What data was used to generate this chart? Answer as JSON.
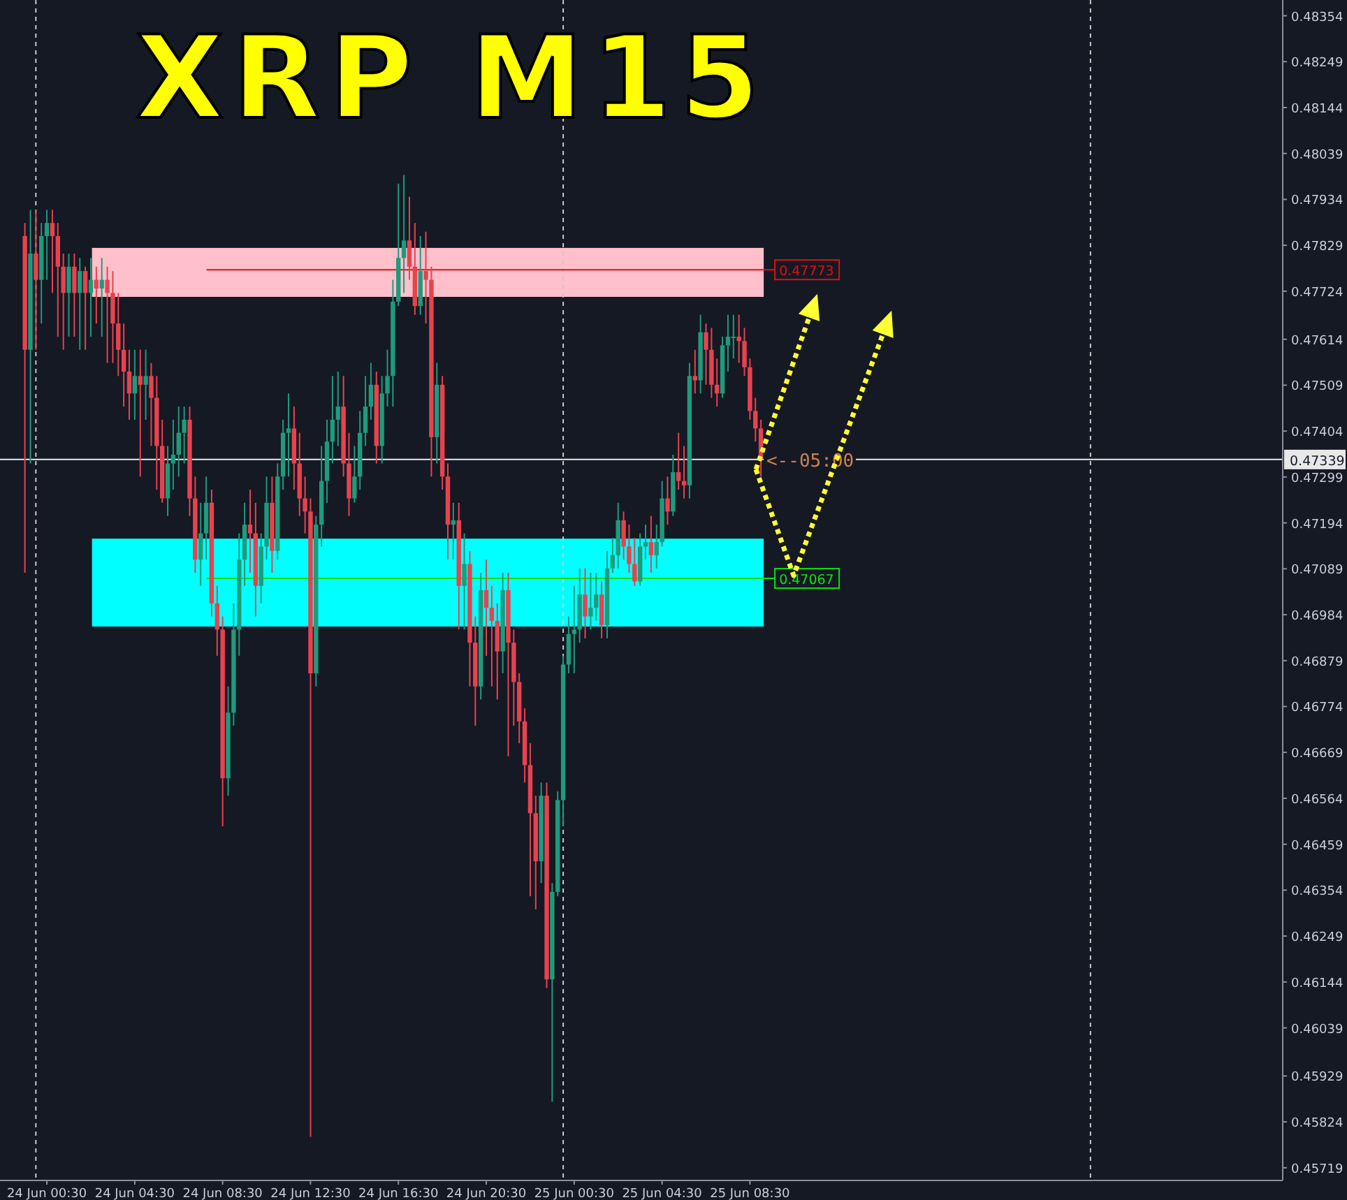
{
  "chart_data": {
    "type": "candlestick",
    "title": "XRP M15",
    "x": [
      "--06-23T23:30",
      "--06-23T23:45",
      "--06-24T00:00",
      "--06-24T00:15",
      "--06-24T00:30",
      "--06-24T00:45",
      "--06-24T01:00",
      "--06-24T01:15",
      "--06-24T01:30",
      "--06-24T01:45",
      "--06-24T02:00",
      "--06-24T02:15",
      "--06-24T02:30",
      "--06-24T02:45",
      "--06-24T03:00",
      "--06-24T03:15",
      "--06-24T03:30",
      "--06-24T03:45",
      "--06-24T04:00",
      "--06-24T04:15",
      "--06-24T04:30",
      "--06-24T04:45",
      "--06-24T05:00",
      "--06-24T05:15",
      "--06-24T05:30",
      "--06-24T05:45",
      "--06-24T06:00",
      "--06-24T06:15",
      "--06-24T06:30",
      "--06-24T06:45",
      "--06-24T07:00",
      "--06-24T07:15",
      "--06-24T07:30",
      "--06-24T07:45",
      "--06-24T08:00",
      "--06-24T08:15",
      "--06-24T08:30",
      "--06-24T08:45",
      "--06-24T09:00",
      "--06-24T09:15",
      "--06-24T09:30",
      "--06-24T09:45",
      "--06-24T10:00",
      "--06-24T10:15",
      "--06-24T10:30",
      "--06-24T10:45",
      "--06-24T11:00",
      "--06-24T11:15",
      "--06-24T11:30",
      "--06-24T11:45",
      "--06-24T12:00",
      "--06-24T12:15",
      "--06-24T12:30",
      "--06-24T12:45",
      "--06-24T13:00",
      "--06-24T13:15",
      "--06-24T13:30",
      "--06-24T13:45",
      "--06-24T14:00",
      "--06-24T14:15",
      "--06-24T14:30",
      "--06-24T14:45",
      "--06-24T15:00",
      "--06-24T15:15",
      "--06-24T15:30",
      "--06-24T15:45",
      "--06-24T16:00",
      "--06-24T16:15",
      "--06-24T16:30",
      "--06-24T16:45",
      "--06-24T17:00",
      "--06-24T17:15",
      "--06-24T17:30",
      "--06-24T17:45",
      "--06-24T18:00",
      "--06-24T18:15",
      "--06-24T18:30",
      "--06-24T18:45",
      "--06-24T19:00",
      "--06-24T19:15",
      "--06-24T19:30",
      "--06-24T19:45",
      "--06-24T20:00",
      "--06-24T20:15",
      "--06-24T20:30",
      "--06-24T20:45",
      "--06-24T21:00",
      "--06-24T21:15",
      "--06-24T21:30",
      "--06-24T21:45",
      "--06-24T22:00",
      "--06-24T22:15",
      "--06-24T22:30",
      "--06-24T22:45",
      "--06-24T23:00",
      "--06-24T23:15",
      "--06-24T23:30",
      "--06-24T23:45",
      "--06-25T00:00",
      "--06-25T00:15",
      "--06-25T00:30",
      "--06-25T00:45",
      "--06-25T01:00",
      "--06-25T01:15",
      "--06-25T01:30",
      "--06-25T01:45",
      "--06-25T02:00",
      "--06-25T02:15",
      "--06-25T02:30",
      "--06-25T02:45",
      "--06-25T03:00",
      "--06-25T03:15",
      "--06-25T03:30",
      "--06-25T03:45",
      "--06-25T04:00",
      "--06-25T04:15",
      "--06-25T04:30",
      "--06-25T04:45",
      "--06-25T05:00",
      "--06-25T05:15",
      "--06-25T05:30",
      "--06-25T05:45",
      "--06-25T06:00",
      "--06-25T06:15",
      "--06-25T06:30",
      "--06-25T06:45",
      "--06-25T07:00",
      "--06-25T07:15",
      "--06-25T07:30",
      "--06-25T07:45",
      "--06-25T08:00",
      "--06-25T08:15",
      "--06-25T08:30",
      "--06-25T08:45",
      "--06-25T09:00"
    ],
    "ohlc": [
      [
        0.4785,
        0.4788,
        0.4708,
        0.4759
      ],
      [
        0.4759,
        0.4791,
        0.4733,
        0.4781
      ],
      [
        0.4781,
        0.4791,
        0.4759,
        0.4775
      ],
      [
        0.4775,
        0.4788,
        0.4765,
        0.4785
      ],
      [
        0.4785,
        0.4791,
        0.4775,
        0.4788
      ],
      [
        0.4788,
        0.4791,
        0.4772,
        0.4785
      ],
      [
        0.4785,
        0.4788,
        0.4762,
        0.4778
      ],
      [
        0.4778,
        0.4781,
        0.4759,
        0.4772
      ],
      [
        0.4772,
        0.4781,
        0.4762,
        0.4778
      ],
      [
        0.4778,
        0.4781,
        0.4762,
        0.4772
      ],
      [
        0.4772,
        0.478,
        0.4759,
        0.4777
      ],
      [
        0.4777,
        0.4778,
        0.4759,
        0.4772
      ],
      [
        0.4772,
        0.478,
        0.4762,
        0.4775
      ],
      [
        0.4775,
        0.4778,
        0.4765,
        0.4773
      ],
      [
        0.4773,
        0.478,
        0.4762,
        0.4775
      ],
      [
        0.4775,
        0.4778,
        0.4756,
        0.4772
      ],
      [
        0.4772,
        0.4777,
        0.4756,
        0.4765
      ],
      [
        0.4765,
        0.4772,
        0.4753,
        0.4759
      ],
      [
        0.4759,
        0.4765,
        0.4746,
        0.4754
      ],
      [
        0.4754,
        0.4759,
        0.4743,
        0.4749
      ],
      [
        0.4749,
        0.4759,
        0.4743,
        0.4753
      ],
      [
        0.4753,
        0.4759,
        0.473,
        0.4751
      ],
      [
        0.4751,
        0.4759,
        0.4743,
        0.4753
      ],
      [
        0.4753,
        0.4756,
        0.4737,
        0.4748
      ],
      [
        0.4748,
        0.4753,
        0.4727,
        0.4737
      ],
      [
        0.4737,
        0.4743,
        0.4724,
        0.4725
      ],
      [
        0.4725,
        0.4737,
        0.4721,
        0.4733
      ],
      [
        0.4733,
        0.4743,
        0.4727,
        0.4735
      ],
      [
        0.4735,
        0.4746,
        0.473,
        0.474
      ],
      [
        0.474,
        0.4746,
        0.4733,
        0.4743
      ],
      [
        0.4743,
        0.4746,
        0.4721,
        0.4725
      ],
      [
        0.4725,
        0.473,
        0.4708,
        0.4711
      ],
      [
        0.4711,
        0.4724,
        0.4705,
        0.4717
      ],
      [
        0.4717,
        0.473,
        0.4711,
        0.4724
      ],
      [
        0.4724,
        0.4727,
        0.4698,
        0.4701
      ],
      [
        0.4701,
        0.4705,
        0.4689,
        0.4695
      ],
      [
        0.4695,
        0.4698,
        0.465,
        0.4661
      ],
      [
        0.4661,
        0.4682,
        0.4657,
        0.4676
      ],
      [
        0.4676,
        0.4701,
        0.4673,
        0.4695
      ],
      [
        0.4695,
        0.4717,
        0.4689,
        0.4711
      ],
      [
        0.4711,
        0.4724,
        0.4705,
        0.4719
      ],
      [
        0.4719,
        0.4727,
        0.4708,
        0.4717
      ],
      [
        0.4717,
        0.4724,
        0.4698,
        0.4705
      ],
      [
        0.4705,
        0.4717,
        0.4701,
        0.4714
      ],
      [
        0.4714,
        0.473,
        0.4711,
        0.4724
      ],
      [
        0.4724,
        0.473,
        0.4708,
        0.4713
      ],
      [
        0.4713,
        0.4733,
        0.4711,
        0.473
      ],
      [
        0.473,
        0.4743,
        0.4727,
        0.474
      ],
      [
        0.474,
        0.4749,
        0.473,
        0.4741
      ],
      [
        0.4741,
        0.4746,
        0.4727,
        0.4733
      ],
      [
        0.4733,
        0.474,
        0.4721,
        0.4725
      ],
      [
        0.4725,
        0.473,
        0.4717,
        0.4722
      ],
      [
        0.4722,
        0.4725,
        0.4579,
        0.4685
      ],
      [
        0.4685,
        0.4721,
        0.4682,
        0.4719
      ],
      [
        0.4719,
        0.4737,
        0.4714,
        0.4729
      ],
      [
        0.4729,
        0.4743,
        0.4724,
        0.4738
      ],
      [
        0.4738,
        0.4753,
        0.4733,
        0.4743
      ],
      [
        0.4743,
        0.4754,
        0.4737,
        0.4746
      ],
      [
        0.4746,
        0.4753,
        0.473,
        0.4733
      ],
      [
        0.4733,
        0.474,
        0.4721,
        0.4725
      ],
      [
        0.4725,
        0.4737,
        0.4724,
        0.473
      ],
      [
        0.473,
        0.4745,
        0.4727,
        0.474
      ],
      [
        0.474,
        0.4753,
        0.4737,
        0.4746
      ],
      [
        0.4746,
        0.4756,
        0.4743,
        0.4751
      ],
      [
        0.4751,
        0.4754,
        0.4733,
        0.4737
      ],
      [
        0.4737,
        0.4753,
        0.4733,
        0.4749
      ],
      [
        0.4749,
        0.4759,
        0.4746,
        0.4753
      ],
      [
        0.4753,
        0.4775,
        0.4746,
        0.477
      ],
      [
        0.477,
        0.4797,
        0.4769,
        0.478
      ],
      [
        0.478,
        0.4799,
        0.4772,
        0.4784
      ],
      [
        0.4784,
        0.4794,
        0.4775,
        0.4778
      ],
      [
        0.4778,
        0.4788,
        0.4767,
        0.4769
      ],
      [
        0.4769,
        0.4785,
        0.4767,
        0.4777
      ],
      [
        0.4777,
        0.4786,
        0.4765,
        0.4775
      ],
      [
        0.4775,
        0.4778,
        0.473,
        0.4739
      ],
      [
        0.4739,
        0.4756,
        0.4733,
        0.4751
      ],
      [
        0.4751,
        0.4753,
        0.4727,
        0.473
      ],
      [
        0.473,
        0.4733,
        0.4711,
        0.4719
      ],
      [
        0.4719,
        0.4724,
        0.4711,
        0.472
      ],
      [
        0.472,
        0.4724,
        0.4695,
        0.4705
      ],
      [
        0.4705,
        0.4717,
        0.4695,
        0.471
      ],
      [
        0.471,
        0.4713,
        0.4682,
        0.4692
      ],
      [
        0.4692,
        0.4698,
        0.4673,
        0.4682
      ],
      [
        0.4682,
        0.4708,
        0.4679,
        0.4704
      ],
      [
        0.4704,
        0.4711,
        0.4689,
        0.47
      ],
      [
        0.47,
        0.4705,
        0.4682,
        0.4697
      ],
      [
        0.4697,
        0.4701,
        0.4679,
        0.469
      ],
      [
        0.469,
        0.4708,
        0.4685,
        0.4704
      ],
      [
        0.4704,
        0.4708,
        0.4666,
        0.4692
      ],
      [
        0.4692,
        0.4695,
        0.4673,
        0.4683
      ],
      [
        0.4683,
        0.4685,
        0.4669,
        0.4674
      ],
      [
        0.4674,
        0.4677,
        0.466,
        0.4664
      ],
      [
        0.4664,
        0.4669,
        0.4634,
        0.4653
      ],
      [
        0.4653,
        0.4657,
        0.4631,
        0.4642
      ],
      [
        0.4642,
        0.466,
        0.4637,
        0.4657
      ],
      [
        0.4657,
        0.466,
        0.4613,
        0.4615
      ],
      [
        0.4615,
        0.4637,
        0.4587,
        0.4635
      ],
      [
        0.4635,
        0.4658,
        0.4634,
        0.4656
      ],
      [
        0.4656,
        0.4689,
        0.465,
        0.4687
      ],
      [
        0.4687,
        0.4698,
        0.4685,
        0.4694
      ],
      [
        0.4694,
        0.4705,
        0.4685,
        0.4695
      ],
      [
        0.4695,
        0.4709,
        0.4692,
        0.4703
      ],
      [
        0.4703,
        0.4709,
        0.4693,
        0.4698
      ],
      [
        0.4698,
        0.4708,
        0.4695,
        0.47
      ],
      [
        0.47,
        0.4708,
        0.4697,
        0.4703
      ],
      [
        0.4703,
        0.4706,
        0.4693,
        0.4696
      ],
      [
        0.4696,
        0.4713,
        0.4693,
        0.4709
      ],
      [
        0.4709,
        0.4716,
        0.4708,
        0.4712
      ],
      [
        0.4712,
        0.4724,
        0.4709,
        0.472
      ],
      [
        0.472,
        0.4722,
        0.4711,
        0.4714
      ],
      [
        0.4714,
        0.4719,
        0.4708,
        0.471
      ],
      [
        0.471,
        0.4716,
        0.4705,
        0.4706
      ],
      [
        0.4706,
        0.4717,
        0.4705,
        0.4714
      ],
      [
        0.4714,
        0.4719,
        0.4711,
        0.4715
      ],
      [
        0.4715,
        0.4721,
        0.4708,
        0.4712
      ],
      [
        0.4712,
        0.4719,
        0.4709,
        0.4715
      ],
      [
        0.4715,
        0.4729,
        0.4714,
        0.4725
      ],
      [
        0.4725,
        0.473,
        0.4719,
        0.4722
      ],
      [
        0.4722,
        0.4735,
        0.4721,
        0.4731
      ],
      [
        0.4731,
        0.474,
        0.4727,
        0.4729
      ],
      [
        0.4729,
        0.4737,
        0.4725,
        0.4728
      ],
      [
        0.4728,
        0.4756,
        0.4725,
        0.4753
      ],
      [
        0.4753,
        0.4759,
        0.4749,
        0.4752
      ],
      [
        0.4752,
        0.4767,
        0.4749,
        0.4763
      ],
      [
        0.4763,
        0.4765,
        0.4751,
        0.4759
      ],
      [
        0.4759,
        0.4764,
        0.4748,
        0.4751
      ],
      [
        0.4751,
        0.4757,
        0.4746,
        0.4749
      ],
      [
        0.4749,
        0.4762,
        0.4748,
        0.476
      ],
      [
        0.476,
        0.4767,
        0.4754,
        0.4762
      ],
      [
        0.4762,
        0.4767,
        0.4757,
        0.4762
      ],
      [
        0.4762,
        0.4767,
        0.4756,
        0.4761
      ],
      [
        0.4761,
        0.4764,
        0.4753,
        0.4755
      ],
      [
        0.4755,
        0.4757,
        0.4743,
        0.4745
      ],
      [
        0.4745,
        0.4748,
        0.4738,
        0.4741
      ],
      [
        0.4741,
        0.4743,
        0.473,
        0.4734
      ]
    ],
    "xlim": [
      "--06-23T22:22",
      "--06-26T08:45"
    ],
    "xticks": [
      {
        "value": "--06-24T00:30",
        "label": "24 Jun 00:30"
      },
      {
        "value": "--06-24T04:30",
        "label": "24 Jun 04:30"
      },
      {
        "value": "--06-24T08:30",
        "label": "24 Jun 08:30"
      },
      {
        "value": "--06-24T12:30",
        "label": "24 Jun 12:30"
      },
      {
        "value": "--06-24T16:30",
        "label": "24 Jun 16:30"
      },
      {
        "value": "--06-24T20:30",
        "label": "24 Jun 20:30"
      },
      {
        "value": "--06-25T00:30",
        "label": "25 Jun 00:30"
      },
      {
        "value": "--06-25T04:30",
        "label": "25 Jun 04:30"
      },
      {
        "value": "--06-25T08:30",
        "label": "25 Jun 08:30"
      }
    ],
    "ylim": [
      0.4569,
      0.4839
    ],
    "yticks": [
      0.48354,
      0.48249,
      0.48144,
      0.48039,
      0.47934,
      0.47829,
      0.47724,
      0.47614,
      0.47509,
      0.47404,
      0.47299,
      0.47194,
      0.47089,
      0.46984,
      0.46879,
      0.46774,
      0.46669,
      0.46564,
      0.46459,
      0.46354,
      0.46249,
      0.46144,
      0.46039,
      0.45929,
      0.45824,
      0.45719
    ],
    "bands": [
      {
        "axis": "y",
        "from": 0.47711,
        "to": 0.47823,
        "color": "#ffc0cb"
      },
      {
        "axis": "y",
        "from": 0.46957,
        "to": 0.47158,
        "color": "#00ffff"
      }
    ],
    "ref_lines": [
      {
        "axis": "x",
        "value": "--06-24T00:00",
        "line_style": "dashed",
        "color": "#c8c8c8"
      },
      {
        "axis": "x",
        "value": "--06-25T00:00",
        "line_style": "dashed",
        "color": "#c8c8c8"
      },
      {
        "axis": "x",
        "value": "--06-26T00:00",
        "line_style": "dashed",
        "color": "#c8c8c8"
      },
      {
        "axis": "y",
        "value": 0.47773,
        "label": "0.47773",
        "color": "#e01010"
      },
      {
        "axis": "y",
        "value": 0.47067,
        "label": "0.47067",
        "color": "#10e010"
      },
      {
        "axis": "y",
        "value": 0.47339,
        "label": "0.47339",
        "color": "#e8e8e8"
      }
    ],
    "annotations": [
      {
        "text": "<--05:00",
        "x": "--06-25T09:15",
        "y": 0.47339
      }
    ],
    "grid": false
  }
}
